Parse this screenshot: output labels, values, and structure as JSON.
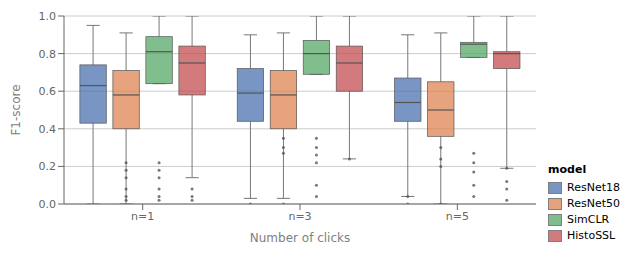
{
  "chart_data": {
    "type": "box",
    "title": "",
    "xlabel": "Number of clicks",
    "ylabel": "F1-score",
    "legend_title": "model",
    "categories": [
      "n=1",
      "n=3",
      "n=5"
    ],
    "series": [
      {
        "name": "ResNet18",
        "color": "#4c72b0",
        "values": [
          {
            "whislo": 0.0,
            "q1": 0.43,
            "med": 0.63,
            "q3": 0.74,
            "whishi": 0.95,
            "fliers": []
          },
          {
            "whislo": 0.03,
            "q1": 0.44,
            "med": 0.59,
            "q3": 0.72,
            "whishi": 0.9,
            "fliers": [
              0.0
            ]
          },
          {
            "whislo": 0.04,
            "q1": 0.44,
            "med": 0.54,
            "q3": 0.67,
            "whishi": 0.9,
            "fliers": [
              0.04,
              0.0
            ]
          }
        ]
      },
      {
        "name": "ResNet50",
        "color": "#dd8452",
        "values": [
          {
            "whislo": 0.0,
            "q1": 0.4,
            "med": 0.58,
            "q3": 0.71,
            "whishi": 0.91,
            "fliers": [
              0.22,
              0.18,
              0.14,
              0.08,
              0.04,
              0.02
            ]
          },
          {
            "whislo": 0.03,
            "q1": 0.4,
            "med": 0.58,
            "q3": 0.71,
            "whishi": 0.91,
            "fliers": [
              0.35,
              0.3,
              0.27,
              0.0
            ]
          },
          {
            "whislo": 0.0,
            "q1": 0.36,
            "med": 0.5,
            "q3": 0.65,
            "whishi": 0.91,
            "fliers": [
              0.3,
              0.24,
              0.2,
              0.0
            ]
          }
        ]
      },
      {
        "name": "SimCLR",
        "color": "#55a868",
        "values": [
          {
            "whislo": 0.64,
            "q1": 0.64,
            "med": 0.81,
            "q3": 0.89,
            "whishi": 1.0,
            "fliers": [
              0.22,
              0.18,
              0.14,
              0.08,
              0.04,
              0.02
            ]
          },
          {
            "whislo": 0.69,
            "q1": 0.69,
            "med": 0.8,
            "q3": 0.87,
            "whishi": 1.0,
            "fliers": [
              0.35,
              0.3,
              0.26,
              0.22,
              0.1,
              0.04
            ]
          },
          {
            "whislo": 0.78,
            "q1": 0.78,
            "med": 0.85,
            "q3": 0.86,
            "whishi": 1.0,
            "fliers": [
              0.27,
              0.22,
              0.17,
              0.1,
              0.04
            ]
          }
        ]
      },
      {
        "name": "HistoSSL",
        "color": "#c44e52",
        "values": [
          {
            "whislo": 0.14,
            "q1": 0.58,
            "med": 0.75,
            "q3": 0.84,
            "whishi": 1.0,
            "fliers": [
              0.08,
              0.04,
              0.02
            ]
          },
          {
            "whislo": 0.24,
            "q1": 0.6,
            "med": 0.75,
            "q3": 0.84,
            "whishi": 1.0,
            "fliers": [
              0.24
            ]
          },
          {
            "whislo": 0.19,
            "q1": 0.72,
            "med": 0.8,
            "q3": 0.81,
            "whishi": 1.0,
            "fliers": [
              0.19,
              0.12,
              0.08,
              0.02
            ]
          }
        ]
      }
    ],
    "ylim": [
      0.0,
      1.0
    ],
    "yticks": [
      {
        "value": 0.0,
        "label": "0.0"
      },
      0.2,
      0.4,
      0.6,
      0.8,
      {
        "value": 1.0,
        "label": "1.0"
      }
    ],
    "grid": true,
    "legend": "lower right"
  }
}
